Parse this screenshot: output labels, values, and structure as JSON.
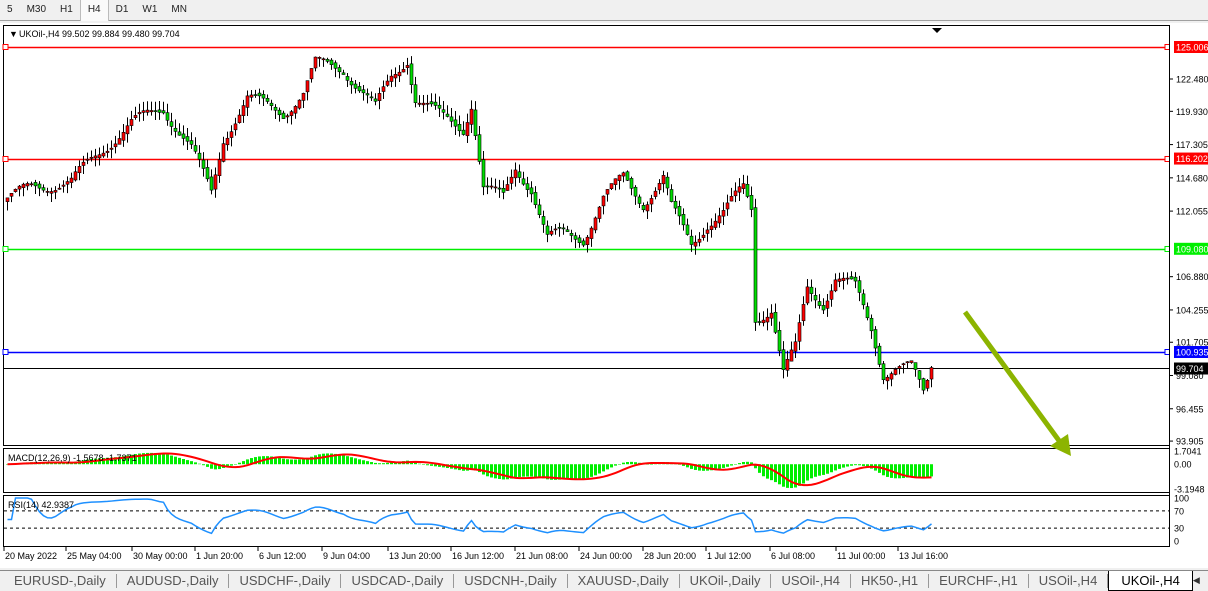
{
  "timeframes": [
    {
      "label": "5"
    },
    {
      "label": "M30"
    },
    {
      "label": "H1"
    },
    {
      "label": "H4",
      "active": true
    },
    {
      "label": "D1"
    },
    {
      "label": "W1"
    },
    {
      "label": "MN"
    }
  ],
  "chart": {
    "header": "UKOil-,H4  99.502 99.884 99.480 99.704",
    "symbol": "UKOil-",
    "timeframe": "H4",
    "open": 99.502,
    "high": 99.884,
    "low": 99.48,
    "close": 99.704,
    "price_ticks": [
      "122.480",
      "119.930",
      "117.305",
      "114.680",
      "112.055",
      "106.880",
      "104.255",
      "101.705",
      "99.080",
      "96.455",
      "93.905"
    ],
    "price_range": [
      93.905,
      125.006
    ],
    "levels": [
      {
        "price": 125.006,
        "label": "125.006",
        "color": "#ff0000"
      },
      {
        "price": 116.202,
        "label": "116.202",
        "color": "#ff0000"
      },
      {
        "price": 109.08,
        "label": "109.080",
        "color": "#00ee00"
      },
      {
        "price": 100.935,
        "label": "100.935",
        "color": "#0000ff"
      }
    ],
    "current_price": {
      "price": 99.704,
      "label": "99.704"
    },
    "bull_color": "#ff0000",
    "bear_color": "#00dd00",
    "arrow_color": "#8cb400",
    "price_path": [
      [
        0,
        113.1
      ],
      [
        6,
        113.9
      ],
      [
        16,
        114.4
      ],
      [
        24,
        117
      ],
      [
        31,
        119
      ],
      [
        39,
        120.2
      ],
      [
        46,
        117
      ],
      [
        51,
        113.5
      ],
      [
        54,
        117.8
      ],
      [
        60,
        121
      ],
      [
        69,
        119.8
      ],
      [
        74,
        121.4
      ],
      [
        77,
        123.7
      ],
      [
        84,
        123.3
      ],
      [
        89,
        121.4
      ],
      [
        92,
        120.2
      ],
      [
        96,
        122.6
      ],
      [
        100,
        124.1
      ],
      [
        102,
        121
      ],
      [
        109,
        119.4
      ],
      [
        114,
        118.6
      ],
      [
        116,
        120.6
      ],
      [
        119,
        113.9
      ],
      [
        124,
        113.1
      ],
      [
        127,
        115.5
      ],
      [
        131,
        113.9
      ],
      [
        135,
        109.9
      ],
      [
        139,
        110.3
      ],
      [
        144,
        109.9
      ],
      [
        149,
        113.1
      ],
      [
        154,
        114.7
      ],
      [
        159,
        112.7
      ],
      [
        164,
        114.7
      ],
      [
        166,
        112.3
      ],
      [
        171,
        109.5
      ],
      [
        175,
        111.1
      ],
      [
        179,
        111.9
      ],
      [
        184,
        113.9
      ],
      [
        186,
        112.3
      ],
      [
        187,
        103.6
      ],
      [
        191,
        104.4
      ],
      [
        194,
        99.3
      ],
      [
        197,
        101.2
      ],
      [
        200,
        106
      ],
      [
        204,
        104.8
      ],
      [
        207,
        106.8
      ],
      [
        212,
        106
      ],
      [
        216,
        102.8
      ],
      [
        219,
        99.3
      ],
      [
        222,
        99.7
      ],
      [
        226,
        99.7
      ],
      [
        229,
        97.7
      ],
      [
        231,
        99.704
      ]
    ]
  },
  "macd": {
    "label": "MACD(12,26,9) -1.5678 -1.7371",
    "ticks": [
      "1.7041",
      "0.00",
      "-3.1948"
    ],
    "range": [
      -3.1948,
      1.7041
    ],
    "hist_color": "#00ee00",
    "signal_color": "#ff0000"
  },
  "rsi": {
    "label": "RSI(14) 42.9387",
    "ticks": [
      "100",
      "70",
      "30",
      "0"
    ],
    "line_color": "#1e90ff"
  },
  "time_labels": [
    "20 May 2022",
    "25 May 04:00",
    "30 May 00:00",
    "1 Jun 20:00",
    "6 Jun 12:00",
    "9 Jun 04:00",
    "13 Jun 20:00",
    "16 Jun 12:00",
    "21 Jun 08:00",
    "24 Jun 00:00",
    "28 Jun 20:00",
    "1 Jul 12:00",
    "6 Jul 08:00",
    "11 Jul 00:00",
    "13 Jul 16:00"
  ],
  "tabs": [
    {
      "label": "EURUSD-,Daily"
    },
    {
      "label": "AUDUSD-,Daily"
    },
    {
      "label": "USDCHF-,Daily"
    },
    {
      "label": "USDCAD-,Daily"
    },
    {
      "label": "USDCNH-,Daily"
    },
    {
      "label": "XAUUSD-,Daily"
    },
    {
      "label": "UKOil-,Daily"
    },
    {
      "label": "USOil-,H4"
    },
    {
      "label": "HK50-,H1"
    },
    {
      "label": "EURCHF-,H1"
    },
    {
      "label": "USOil-,H4"
    },
    {
      "label": "UKOil-,H4",
      "active": true
    }
  ],
  "tab_nav": {
    "left": "◀",
    "right": "▶"
  }
}
